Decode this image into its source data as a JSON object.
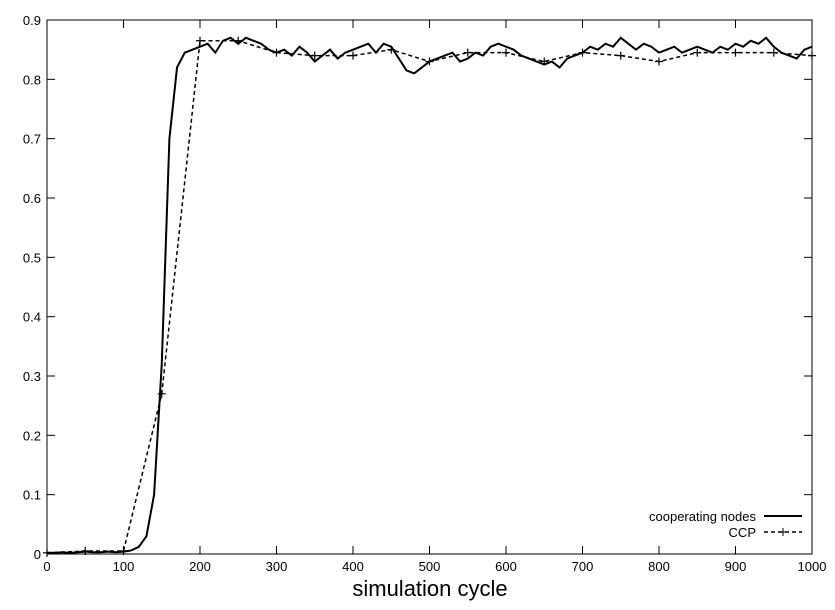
{
  "chart_data": {
    "type": "line",
    "xlabel": "simulation cycle",
    "xlim": [
      0,
      1000
    ],
    "xticks": [
      0,
      100,
      200,
      300,
      400,
      500,
      600,
      700,
      800,
      900,
      1000
    ],
    "ylim": [
      0,
      0.9
    ],
    "yticks": [
      0,
      0.1,
      0.2,
      0.3,
      0.4,
      0.5,
      0.6,
      0.7,
      0.8,
      0.9
    ],
    "legend": "lower right",
    "series": [
      {
        "name": "cooperating nodes",
        "color": "#000000",
        "style": "solid",
        "x": [
          0,
          10,
          20,
          30,
          40,
          50,
          60,
          70,
          80,
          90,
          100,
          110,
          120,
          130,
          140,
          150,
          160,
          170,
          180,
          190,
          200,
          210,
          220,
          230,
          240,
          250,
          260,
          270,
          280,
          290,
          300,
          310,
          320,
          330,
          340,
          350,
          360,
          370,
          380,
          390,
          400,
          410,
          420,
          430,
          440,
          450,
          460,
          470,
          480,
          490,
          500,
          510,
          520,
          530,
          540,
          550,
          560,
          570,
          580,
          590,
          600,
          610,
          620,
          630,
          640,
          650,
          660,
          670,
          680,
          690,
          700,
          710,
          720,
          730,
          740,
          750,
          760,
          770,
          780,
          790,
          800,
          810,
          820,
          830,
          840,
          850,
          860,
          870,
          880,
          890,
          900,
          910,
          920,
          930,
          940,
          950,
          960,
          970,
          980,
          990,
          1000
        ],
        "values": [
          0.002,
          0.002,
          0.003,
          0.002,
          0.003,
          0.004,
          0.003,
          0.003,
          0.004,
          0.003,
          0.004,
          0.006,
          0.012,
          0.03,
          0.1,
          0.32,
          0.7,
          0.82,
          0.845,
          0.85,
          0.855,
          0.86,
          0.845,
          0.865,
          0.87,
          0.86,
          0.87,
          0.865,
          0.86,
          0.85,
          0.845,
          0.85,
          0.84,
          0.855,
          0.845,
          0.83,
          0.84,
          0.85,
          0.835,
          0.845,
          0.85,
          0.855,
          0.86,
          0.845,
          0.86,
          0.855,
          0.835,
          0.815,
          0.81,
          0.82,
          0.83,
          0.835,
          0.84,
          0.845,
          0.83,
          0.835,
          0.845,
          0.84,
          0.855,
          0.86,
          0.855,
          0.85,
          0.84,
          0.835,
          0.83,
          0.825,
          0.83,
          0.82,
          0.835,
          0.84,
          0.845,
          0.855,
          0.85,
          0.86,
          0.855,
          0.87,
          0.86,
          0.85,
          0.86,
          0.855,
          0.845,
          0.85,
          0.855,
          0.845,
          0.85,
          0.855,
          0.85,
          0.845,
          0.855,
          0.85,
          0.86,
          0.855,
          0.865,
          0.86,
          0.87,
          0.855,
          0.845,
          0.84,
          0.835,
          0.85,
          0.855
        ]
      },
      {
        "name": "CCP",
        "color": "#000000",
        "style": "dashed",
        "markers": true,
        "x": [
          0,
          50,
          100,
          150,
          200,
          250,
          300,
          350,
          400,
          450,
          500,
          550,
          600,
          650,
          700,
          750,
          800,
          850,
          900,
          950,
          1000
        ],
        "values": [
          0.002,
          0.005,
          0.005,
          0.27,
          0.865,
          0.865,
          0.845,
          0.84,
          0.84,
          0.85,
          0.83,
          0.845,
          0.845,
          0.83,
          0.845,
          0.84,
          0.83,
          0.845,
          0.845,
          0.845,
          0.84
        ]
      }
    ]
  }
}
